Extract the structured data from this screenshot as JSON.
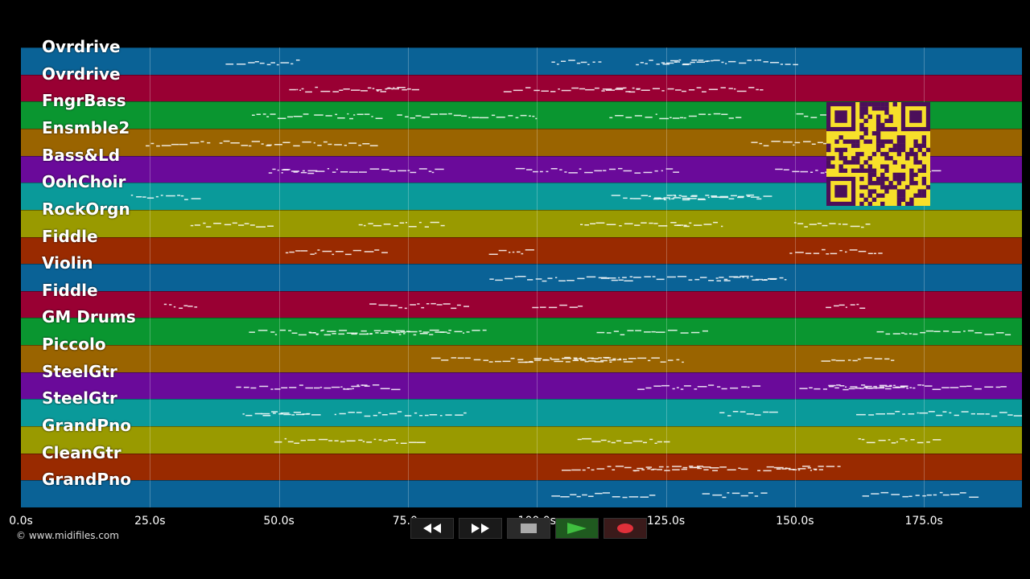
{
  "tracks": [
    {
      "label": "Ovrdrive",
      "color": "#0a6296"
    },
    {
      "label": "Ovrdrive",
      "color": "#990033"
    },
    {
      "label": "FngrBass",
      "color": "#0a9630"
    },
    {
      "label": "Ensmble2",
      "color": "#9a6400"
    },
    {
      "label": "Bass&Ld",
      "color": "#6a0a9a"
    },
    {
      "label": "OohChoir",
      "color": "#0a9a9a"
    },
    {
      "label": "RockOrgn",
      "color": "#999a00"
    },
    {
      "label": "Fiddle",
      "color": "#992a00"
    },
    {
      "label": "Violin",
      "color": "#0a6296"
    },
    {
      "label": "Fiddle",
      "color": "#990033"
    },
    {
      "label": "GM Drums",
      "color": "#0a9630"
    },
    {
      "label": "Piccolo",
      "color": "#9a6400"
    },
    {
      "label": "SteelGtr",
      "color": "#6a0a9a"
    },
    {
      "label": "SteelGtr",
      "color": "#0a9a9a"
    },
    {
      "label": "GrandPno",
      "color": "#999a00"
    },
    {
      "label": "CleanGtr",
      "color": "#992a00"
    },
    {
      "label": "GrandPno",
      "color": "#0a6296"
    }
  ],
  "timeline": {
    "ticks": [
      "0.0s",
      "25.0s",
      "50.0s",
      "75.0s",
      "100.0s",
      "125.0s",
      "150.0s",
      "175.0s"
    ],
    "tick_values": [
      0,
      25,
      50,
      75,
      100,
      125,
      150,
      175
    ],
    "max_seconds": 194
  },
  "copyright": "© www.midifiles.com",
  "transport": {
    "rewind_icon": "rewind-icon",
    "fast_forward_icon": "fast-forward-icon",
    "stop_icon": "stop-icon",
    "play_icon": "play-icon",
    "record_icon": "record-icon"
  },
  "qr_code": "qr-code"
}
